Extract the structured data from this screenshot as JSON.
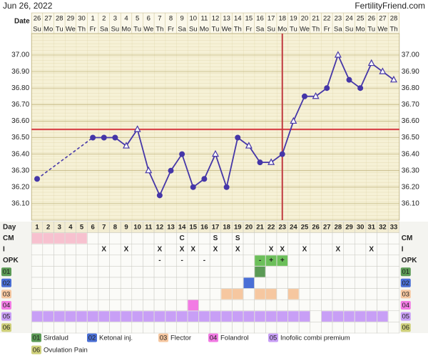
{
  "header": {
    "date": "Jun 26, 2022",
    "site": "FertilityFriend.com"
  },
  "chart_data": {
    "type": "line",
    "date_label": "Date",
    "x": [
      1,
      2,
      3,
      4,
      5,
      6,
      7,
      8,
      9,
      10,
      11,
      12,
      13,
      14,
      15,
      16,
      17,
      18,
      19,
      20,
      21,
      22,
      23,
      24,
      25,
      26,
      27,
      28,
      29,
      30,
      31,
      32,
      33
    ],
    "dates": [
      "26",
      "27",
      "28",
      "29",
      "30",
      "1",
      "2",
      "3",
      "4",
      "5",
      "6",
      "7",
      "8",
      "9",
      "10",
      "11",
      "12",
      "13",
      "14",
      "15",
      "16",
      "17",
      "18",
      "19",
      "20",
      "21",
      "22",
      "23",
      "24",
      "25",
      "26",
      "27",
      "28"
    ],
    "weekdays": [
      "Su",
      "Mo",
      "Tu",
      "We",
      "Th",
      "Fr",
      "Sa",
      "Su",
      "Mo",
      "Tu",
      "We",
      "Th",
      "Fr",
      "Sa",
      "Su",
      "Mo",
      "Tu",
      "We",
      "Th",
      "Fr",
      "Sa",
      "Su",
      "Mo",
      "Tu",
      "We",
      "Th",
      "Fr",
      "Sa",
      "Su",
      "Mo",
      "Tu",
      "We",
      "Th"
    ],
    "series": [
      {
        "name": "Temperature",
        "color": "#4536a8",
        "values": [
          36.25,
          null,
          null,
          null,
          null,
          36.5,
          36.5,
          36.5,
          36.45,
          36.55,
          36.3,
          36.15,
          36.3,
          36.4,
          36.2,
          36.25,
          36.4,
          36.2,
          36.5,
          36.45,
          36.35,
          36.35,
          36.4,
          36.6,
          36.75,
          36.75,
          36.8,
          37.0,
          36.85,
          36.8,
          36.95,
          36.9,
          36.85
        ],
        "markers": [
          "dot",
          null,
          null,
          null,
          null,
          "dot",
          "dot",
          "dot",
          "open",
          "open",
          "open",
          "dot",
          "dot",
          "dot",
          "dot",
          "dot",
          "open",
          "dot",
          "dot",
          "open",
          "dot",
          "open",
          "dot",
          "open",
          "dot",
          "open",
          "dot",
          "open",
          "dot",
          "dot",
          "open",
          "open",
          "open"
        ]
      }
    ],
    "xlim": [
      0.5,
      33.5
    ],
    "ylim": [
      36.0,
      37.13
    ],
    "yticks": [
      {
        "value": 36.1,
        "label": "36.10"
      },
      {
        "value": 36.2,
        "label": "36.20"
      },
      {
        "value": 36.3,
        "label": "36.30"
      },
      {
        "value": 36.4,
        "label": "36.40"
      },
      {
        "value": 36.5,
        "label": "36.50"
      },
      {
        "value": 36.6,
        "label": "36.60"
      },
      {
        "value": 36.7,
        "label": "36.70"
      },
      {
        "value": 36.8,
        "label": "36.80"
      },
      {
        "value": 36.9,
        "label": "36.90"
      },
      {
        "value": 37.0,
        "label": "37.00"
      }
    ],
    "coverline": 36.55,
    "coverline_color": "#d9484d",
    "ovulation_day": 23,
    "ovulation_color": "#c0393f",
    "grid": true
  },
  "cycle_table": {
    "day_label": "Day",
    "cm": {
      "label": "CM",
      "color": "#f7c1cf",
      "highlight_days": [
        1,
        2,
        3,
        4,
        5
      ],
      "marks": [
        {
          "day": 14,
          "text": "C"
        },
        {
          "day": 17,
          "text": "S"
        },
        {
          "day": 19,
          "text": "S"
        }
      ]
    },
    "intercourse": {
      "label": "I",
      "text": "X",
      "days": [
        7,
        9,
        12,
        14,
        15,
        17,
        19,
        22,
        23,
        25,
        28,
        31
      ]
    },
    "opk": {
      "label": "OPK",
      "color": "#6cbf5a",
      "highlight_days": [
        21,
        22,
        23
      ],
      "marks": [
        {
          "day": 12,
          "text": "-"
        },
        {
          "day": 14,
          "text": "-"
        },
        {
          "day": 16,
          "text": "-"
        },
        {
          "day": 21,
          "text": "-"
        },
        {
          "day": 22,
          "text": "+"
        },
        {
          "day": 23,
          "text": "+"
        }
      ]
    },
    "meds": [
      {
        "code": "01",
        "name": "Sirdalud",
        "color": "#5b9a55",
        "days": [
          21
        ]
      },
      {
        "code": "02",
        "name": "Ketonal inj.",
        "color": "#4a6fd6",
        "days": [
          20
        ]
      },
      {
        "code": "03",
        "name": "Flector",
        "color": "#f6c7a0",
        "days": [
          18,
          19,
          21,
          22,
          24
        ]
      },
      {
        "code": "04",
        "name": "Folandrol",
        "color": "#f27be4",
        "days": [
          15
        ]
      },
      {
        "code": "05",
        "name": "Inofolic combi premium",
        "color": "#c89ff6",
        "days": [
          1,
          2,
          3,
          4,
          5,
          6,
          7,
          8,
          9,
          10,
          11,
          12,
          13,
          14,
          15,
          16,
          17,
          18,
          19,
          20,
          21,
          22,
          23,
          24,
          25,
          27,
          28,
          29,
          30,
          31,
          32
        ]
      },
      {
        "code": "06",
        "name": "Ovulation Pain",
        "color": "#cfd07a",
        "days": []
      }
    ]
  }
}
